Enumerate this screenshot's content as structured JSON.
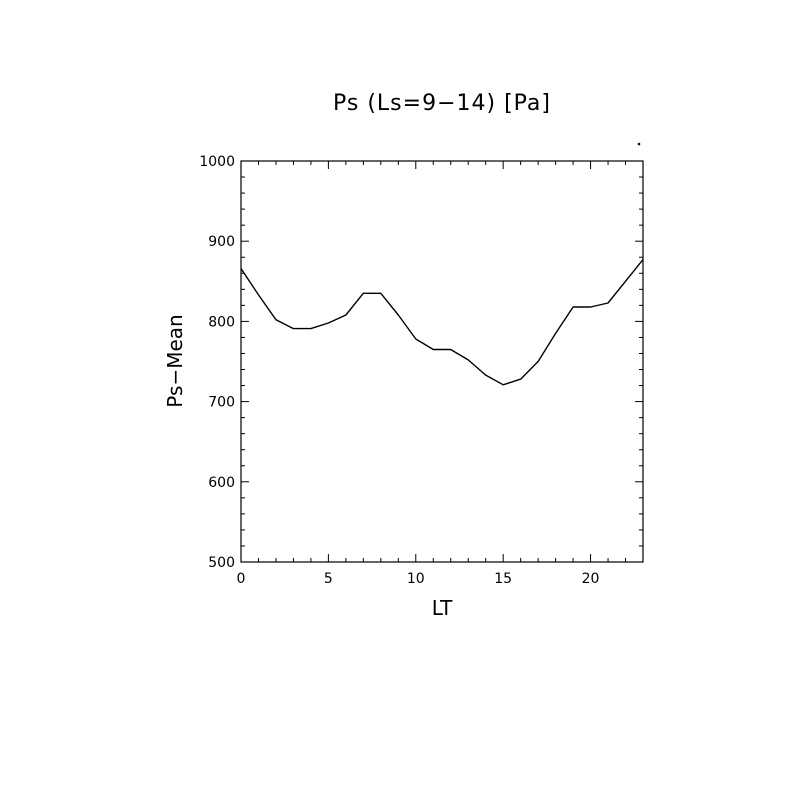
{
  "chart_data": {
    "type": "line",
    "title": "Ps (Ls=9−14) [Pa]",
    "xlabel": "LT",
    "ylabel": "Ps−Mean",
    "xlim": [
      0,
      23
    ],
    "ylim": [
      500,
      1000
    ],
    "x_ticks": [
      0,
      5,
      10,
      15,
      20
    ],
    "y_ticks": [
      500,
      600,
      700,
      800,
      900,
      1000
    ],
    "x_tick_labels": [
      "0",
      "5",
      "10",
      "15",
      "20"
    ],
    "y_tick_labels": [
      "500",
      "600",
      "700",
      "800",
      "900",
      "1000"
    ],
    "grid": false,
    "series": [
      {
        "x": [
          0,
          1,
          2,
          3,
          4,
          5,
          6,
          7,
          8,
          9,
          10,
          11,
          12,
          13,
          14,
          15,
          16,
          17,
          18,
          19,
          20,
          21,
          22,
          23
        ],
        "values": [
          866,
          833,
          802,
          791,
          791,
          798,
          808,
          835,
          835,
          808,
          778,
          765,
          765,
          752,
          733,
          721,
          728,
          750,
          785,
          818,
          818,
          823,
          850,
          877
        ]
      }
    ],
    "line_color": "#000000"
  }
}
